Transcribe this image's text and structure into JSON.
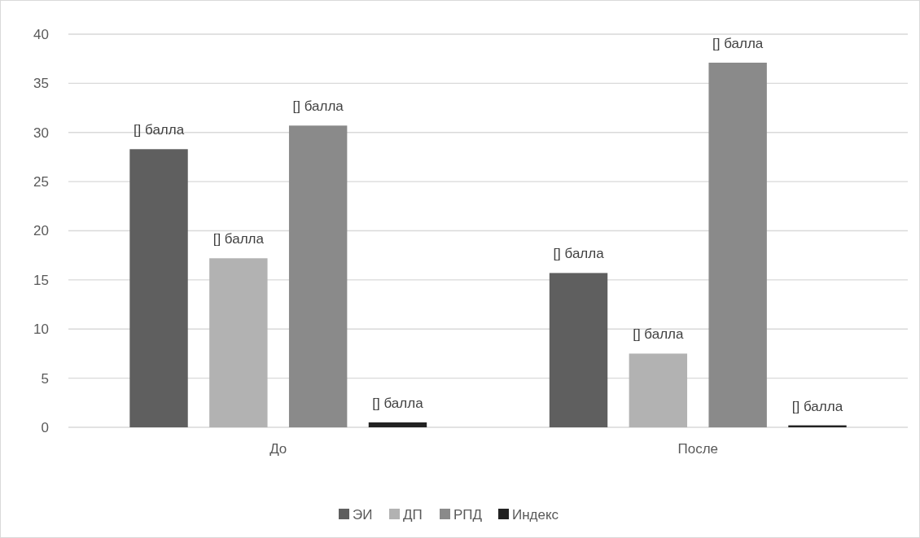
{
  "chart_data": {
    "type": "bar",
    "categories": [
      "До",
      "После"
    ],
    "series": [
      {
        "name": "ЭИ",
        "color": "#5f5f5f",
        "values": [
          28.3,
          15.7
        ],
        "value_labels": [
          "[] балла",
          "[] балла"
        ]
      },
      {
        "name": "ДП",
        "color": "#b2b2b2",
        "values": [
          17.2,
          7.5
        ],
        "value_labels": [
          "[] балла",
          "[] балла"
        ]
      },
      {
        "name": "РПД",
        "color": "#8a8a8a",
        "values": [
          30.7,
          37.1
        ],
        "value_labels": [
          "[] балла",
          "[] балла"
        ]
      },
      {
        "name": "Индекс",
        "color": "#222222",
        "values": [
          0.5,
          0.2
        ],
        "value_labels": [
          "[] балла",
          "[] балла"
        ]
      }
    ],
    "ylim": [
      0,
      40
    ],
    "yticks": [
      0,
      5,
      10,
      15,
      20,
      25,
      30,
      35,
      40
    ],
    "grid": "y",
    "legend": "bottom"
  }
}
